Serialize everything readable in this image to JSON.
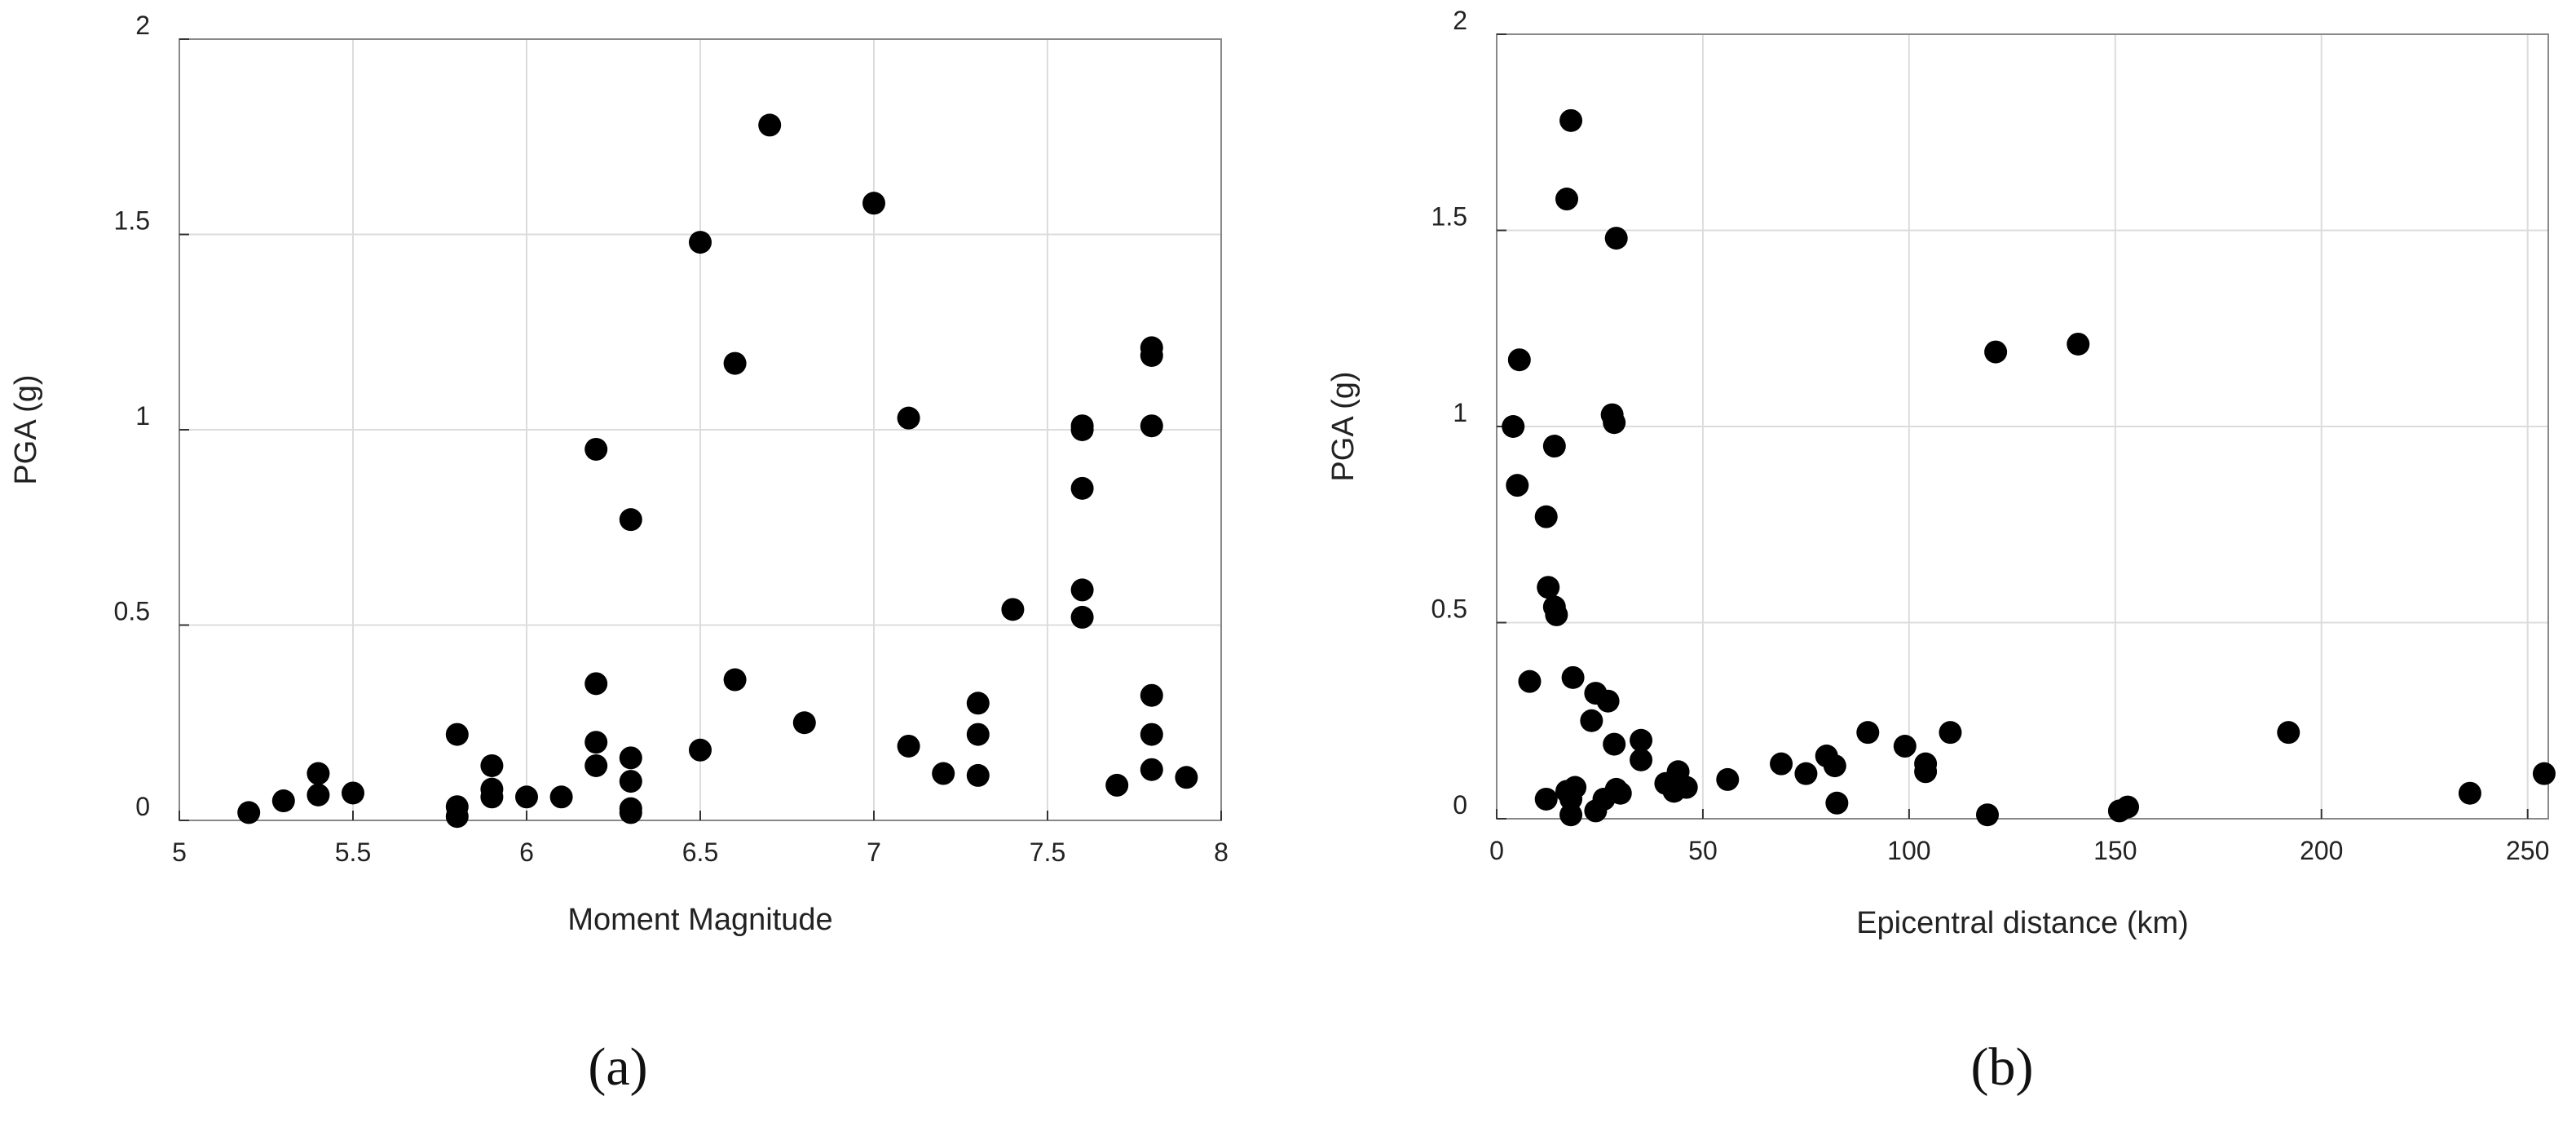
{
  "chart_data": [
    {
      "type": "scatter",
      "panel_label": "(a)",
      "title": "",
      "xlabel": "Moment Magnitude",
      "ylabel": "PGA (g)",
      "xlim": [
        5,
        8
      ],
      "ylim": [
        0,
        2
      ],
      "xticks": [
        5,
        5.5,
        6,
        6.5,
        7,
        7.5,
        8
      ],
      "yticks": [
        0,
        0.5,
        1,
        1.5,
        2
      ],
      "xtick_labels": [
        "5",
        "5.5",
        "6",
        "6.5",
        "7",
        "7.5",
        "8"
      ],
      "ytick_labels": [
        "0",
        "0.5",
        "1",
        "1.5",
        "2"
      ],
      "grid": true,
      "marker_color": "#000000",
      "series": [
        {
          "points": [
            [
              5.2,
              0.02
            ],
            [
              5.3,
              0.05
            ],
            [
              5.4,
              0.12
            ],
            [
              5.4,
              0.065
            ],
            [
              5.5,
              0.07
            ],
            [
              5.8,
              0.22
            ],
            [
              5.8,
              0.035
            ],
            [
              5.8,
              0.01
            ],
            [
              5.9,
              0.14
            ],
            [
              5.9,
              0.08
            ],
            [
              5.9,
              0.06
            ],
            [
              6.0,
              0.06
            ],
            [
              6.1,
              0.06
            ],
            [
              6.2,
              0.95
            ],
            [
              6.2,
              0.35
            ],
            [
              6.2,
              0.2
            ],
            [
              6.2,
              0.14
            ],
            [
              6.3,
              0.77
            ],
            [
              6.3,
              0.16
            ],
            [
              6.3,
              0.1
            ],
            [
              6.3,
              0.03
            ],
            [
              6.3,
              0.02
            ],
            [
              6.5,
              1.48
            ],
            [
              6.5,
              0.18
            ],
            [
              6.6,
              1.17
            ],
            [
              6.6,
              0.36
            ],
            [
              6.7,
              1.78
            ],
            [
              6.8,
              0.25
            ],
            [
              7.0,
              1.58
            ],
            [
              7.1,
              1.03
            ],
            [
              7.1,
              0.19
            ],
            [
              7.2,
              0.12
            ],
            [
              7.3,
              0.3
            ],
            [
              7.3,
              0.22
            ],
            [
              7.3,
              0.115
            ],
            [
              7.4,
              0.54
            ],
            [
              7.6,
              1.01
            ],
            [
              7.6,
              1.0
            ],
            [
              7.6,
              0.85
            ],
            [
              7.6,
              0.59
            ],
            [
              7.6,
              0.52
            ],
            [
              7.7,
              0.09
            ],
            [
              7.8,
              1.21
            ],
            [
              7.8,
              1.19
            ],
            [
              7.8,
              1.01
            ],
            [
              7.8,
              0.32
            ],
            [
              7.8,
              0.22
            ],
            [
              7.8,
              0.13
            ],
            [
              7.9,
              0.11
            ]
          ]
        }
      ]
    },
    {
      "type": "scatter",
      "panel_label": "(b)",
      "title": "",
      "xlabel": "Epicentral distance (km)",
      "ylabel": "PGA (g)",
      "xlim": [
        0,
        255
      ],
      "ylim": [
        0,
        2
      ],
      "xticks": [
        0,
        50,
        100,
        150,
        200,
        250
      ],
      "yticks": [
        0,
        0.5,
        1,
        1.5,
        2
      ],
      "xtick_labels": [
        "0",
        "50",
        "100",
        "150",
        "200",
        "250"
      ],
      "ytick_labels": [
        "0",
        "0.5",
        "1",
        "1.5",
        "2"
      ],
      "grid": true,
      "marker_color": "#000000",
      "series": [
        {
          "points": [
            [
              4,
              1.0
            ],
            [
              5,
              0.85
            ],
            [
              5.5,
              1.17
            ],
            [
              8,
              0.35
            ],
            [
              12,
              0.77
            ],
            [
              12,
              0.05
            ],
            [
              12.5,
              0.59
            ],
            [
              14,
              0.95
            ],
            [
              14,
              0.54
            ],
            [
              14.5,
              0.52
            ],
            [
              17,
              1.58
            ],
            [
              17,
              0.07
            ],
            [
              18,
              1.78
            ],
            [
              18,
              0.05
            ],
            [
              18,
              0.01
            ],
            [
              18.5,
              0.36
            ],
            [
              19,
              0.08
            ],
            [
              23,
              0.25
            ],
            [
              24,
              0.32
            ],
            [
              24,
              0.02
            ],
            [
              26,
              0.05
            ],
            [
              27,
              0.3
            ],
            [
              28,
              1.03
            ],
            [
              28.5,
              1.01
            ],
            [
              28.5,
              0.19
            ],
            [
              29,
              1.48
            ],
            [
              29,
              0.075
            ],
            [
              30,
              0.065
            ],
            [
              35,
              0.2
            ],
            [
              35,
              0.15
            ],
            [
              41,
              0.09
            ],
            [
              43,
              0.07
            ],
            [
              44,
              0.12
            ],
            [
              46,
              0.08
            ],
            [
              56,
              0.1
            ],
            [
              69,
              0.14
            ],
            [
              75,
              0.115
            ],
            [
              80,
              0.16
            ],
            [
              82,
              0.135
            ],
            [
              82.5,
              0.04
            ],
            [
              90,
              0.22
            ],
            [
              99,
              0.185
            ],
            [
              104,
              0.14
            ],
            [
              104,
              0.12
            ],
            [
              110,
              0.22
            ],
            [
              119,
              0.01
            ],
            [
              121,
              1.19
            ],
            [
              141,
              1.21
            ],
            [
              151,
              0.02
            ],
            [
              153,
              0.03
            ],
            [
              192,
              0.22
            ],
            [
              236,
              0.065
            ],
            [
              254,
              0.115
            ]
          ]
        }
      ]
    }
  ]
}
